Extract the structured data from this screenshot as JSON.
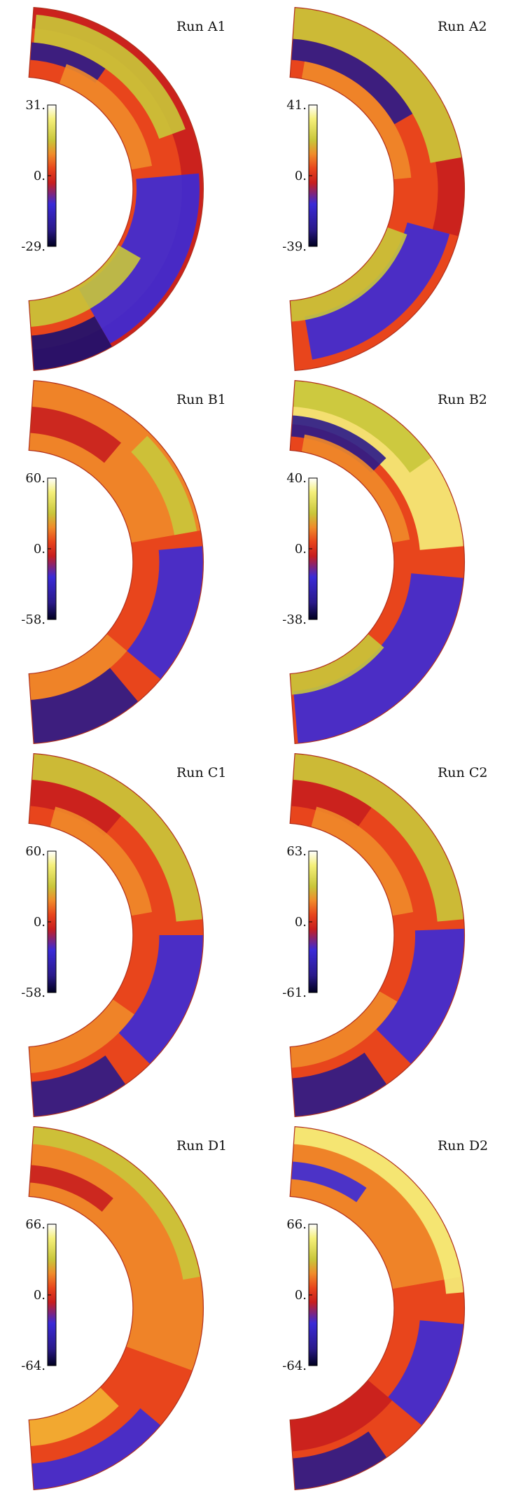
{
  "colormap": {
    "name": "black-blue-red-orange-yellow-white",
    "stops": [
      "#000020",
      "#2a1a8a",
      "#3a2ad8",
      "#c81e1e",
      "#e8451c",
      "#f08a2a",
      "#f3b233",
      "#c9c63a",
      "#f5f07a",
      "#ffffff"
    ]
  },
  "panels": [
    {
      "title": "Run A1",
      "cbar_max": "31.",
      "cbar_zero": "0.",
      "cbar_min": "-29.",
      "bands": [
        {
          "r_from": 0.88,
          "r_to": 1.0,
          "theta_from": -90,
          "theta_to": 90,
          "color": "#c81e1e"
        },
        {
          "r_from": 0.8,
          "r_to": 0.96,
          "theta_from": 20,
          "theta_to": 85,
          "color": "#c9c63a"
        },
        {
          "r_from": 0.7,
          "r_to": 0.8,
          "theta_from": 55,
          "theta_to": 88,
          "color": "#2a1a8a"
        },
        {
          "r_from": 0.6,
          "r_to": 0.72,
          "theta_from": 10,
          "theta_to": 70,
          "color": "#f08a2a"
        },
        {
          "r_from": 0.62,
          "r_to": 0.98,
          "theta_from": -60,
          "theta_to": 5,
          "color": "#3a2ad8"
        },
        {
          "r_from": 0.6,
          "r_to": 0.75,
          "theta_from": -88,
          "theta_to": -30,
          "color": "#c9c63a"
        },
        {
          "r_from": 0.8,
          "r_to": 1.0,
          "theta_from": -88,
          "theta_to": -60,
          "color": "#1a1070"
        }
      ]
    },
    {
      "title": "Run A2",
      "cbar_max": "41.",
      "cbar_zero": "0.",
      "cbar_min": "-39.",
      "bands": [
        {
          "r_from": 0.82,
          "r_to": 1.0,
          "theta_from": 10,
          "theta_to": 88,
          "color": "#c9c63a"
        },
        {
          "r_from": 0.7,
          "r_to": 0.82,
          "theta_from": 30,
          "theta_to": 88,
          "color": "#2a1a8a"
        },
        {
          "r_from": 0.6,
          "r_to": 0.7,
          "theta_from": 5,
          "theta_to": 80,
          "color": "#f08a2a"
        },
        {
          "r_from": 0.85,
          "r_to": 1.0,
          "theta_from": -15,
          "theta_to": 10,
          "color": "#c81e1e"
        },
        {
          "r_from": 0.7,
          "r_to": 0.95,
          "theta_from": -80,
          "theta_to": -15,
          "color": "#3a2ad8"
        },
        {
          "r_from": 0.6,
          "r_to": 0.72,
          "theta_from": -88,
          "theta_to": -20,
          "color": "#c9c63a"
        }
      ]
    },
    {
      "title": "Run B1",
      "cbar_max": "60.",
      "cbar_zero": "0.",
      "cbar_min": "-58.",
      "bands": [
        {
          "r_from": 0.6,
          "r_to": 1.0,
          "theta_from": 10,
          "theta_to": 88,
          "color": "#f08a2a"
        },
        {
          "r_from": 0.7,
          "r_to": 0.85,
          "theta_from": 50,
          "theta_to": 88,
          "color": "#c81e1e"
        },
        {
          "r_from": 0.85,
          "r_to": 0.98,
          "theta_from": 10,
          "theta_to": 45,
          "color": "#c9c63a"
        },
        {
          "r_from": 0.75,
          "r_to": 1.0,
          "theta_from": -40,
          "theta_to": 5,
          "color": "#3a2ad8"
        },
        {
          "r_from": 0.6,
          "r_to": 0.75,
          "theta_from": -88,
          "theta_to": -40,
          "color": "#f08a2a"
        },
        {
          "r_from": 0.75,
          "r_to": 1.0,
          "theta_from": -88,
          "theta_to": -50,
          "color": "#2a1a8a"
        }
      ]
    },
    {
      "title": "Run B2",
      "cbar_max": "40.",
      "cbar_zero": "0.",
      "cbar_min": "-38.",
      "bands": [
        {
          "r_from": 0.75,
          "r_to": 1.0,
          "theta_from": 5,
          "theta_to": 88,
          "color": "#f5f07a"
        },
        {
          "r_from": 0.85,
          "r_to": 1.0,
          "theta_from": 35,
          "theta_to": 88,
          "color": "#c9c63a"
        },
        {
          "r_from": 0.68,
          "r_to": 0.8,
          "theta_from": 45,
          "theta_to": 88,
          "color": "#2a1a8a"
        },
        {
          "r_from": 0.6,
          "r_to": 0.7,
          "theta_from": 10,
          "theta_to": 80,
          "color": "#f08a2a"
        },
        {
          "r_from": 0.7,
          "r_to": 1.0,
          "theta_from": -85,
          "theta_to": -5,
          "color": "#3a2ad8"
        },
        {
          "r_from": 0.6,
          "r_to": 0.72,
          "theta_from": -88,
          "theta_to": -40,
          "color": "#c9c63a"
        }
      ]
    },
    {
      "title": "Run C1",
      "cbar_max": "60.",
      "cbar_zero": "0.",
      "cbar_min": "-58.",
      "bands": [
        {
          "r_from": 0.85,
          "r_to": 1.0,
          "theta_from": 5,
          "theta_to": 88,
          "color": "#c9c63a"
        },
        {
          "r_from": 0.7,
          "r_to": 0.85,
          "theta_from": 50,
          "theta_to": 88,
          "color": "#c81e1e"
        },
        {
          "r_from": 0.6,
          "r_to": 0.72,
          "theta_from": 10,
          "theta_to": 75,
          "color": "#f08a2a"
        },
        {
          "r_from": 0.75,
          "r_to": 1.0,
          "theta_from": -45,
          "theta_to": 0,
          "color": "#3a2ad8"
        },
        {
          "r_from": 0.6,
          "r_to": 0.75,
          "theta_from": -88,
          "theta_to": -35,
          "color": "#f08a2a"
        },
        {
          "r_from": 0.8,
          "r_to": 1.0,
          "theta_from": -88,
          "theta_to": -55,
          "color": "#2a1a8a"
        }
      ]
    },
    {
      "title": "Run C2",
      "cbar_max": "63.",
      "cbar_zero": "0.",
      "cbar_min": "-61.",
      "bands": [
        {
          "r_from": 0.85,
          "r_to": 1.0,
          "theta_from": 5,
          "theta_to": 88,
          "color": "#c9c63a"
        },
        {
          "r_from": 0.7,
          "r_to": 0.85,
          "theta_from": 55,
          "theta_to": 88,
          "color": "#c81e1e"
        },
        {
          "r_from": 0.6,
          "r_to": 0.72,
          "theta_from": 10,
          "theta_to": 75,
          "color": "#f08a2a"
        },
        {
          "r_from": 0.72,
          "r_to": 1.0,
          "theta_from": -45,
          "theta_to": 2,
          "color": "#3a2ad8"
        },
        {
          "r_from": 0.6,
          "r_to": 0.72,
          "theta_from": -88,
          "theta_to": -30,
          "color": "#f08a2a"
        },
        {
          "r_from": 0.78,
          "r_to": 1.0,
          "theta_from": -88,
          "theta_to": -55,
          "color": "#2a1a8a"
        }
      ]
    },
    {
      "title": "Run D1",
      "cbar_max": "66.",
      "cbar_zero": "0.",
      "cbar_min": "-64.",
      "bands": [
        {
          "r_from": 0.6,
          "r_to": 1.0,
          "theta_from": -20,
          "theta_to": 88,
          "color": "#f08a2a"
        },
        {
          "r_from": 0.9,
          "r_to": 1.0,
          "theta_from": 10,
          "theta_to": 88,
          "color": "#c9c63a"
        },
        {
          "r_from": 0.68,
          "r_to": 0.78,
          "theta_from": 50,
          "theta_to": 88,
          "color": "#c81e1e"
        },
        {
          "r_from": 0.85,
          "r_to": 1.0,
          "theta_from": -88,
          "theta_to": -40,
          "color": "#3a2ad8"
        },
        {
          "r_from": 0.6,
          "r_to": 0.75,
          "theta_from": -88,
          "theta_to": -45,
          "color": "#f3b233"
        }
      ]
    },
    {
      "title": "Run D2",
      "cbar_max": "66.",
      "cbar_zero": "0.",
      "cbar_min": "-64.",
      "bands": [
        {
          "r_from": 0.6,
          "r_to": 1.0,
          "theta_from": 10,
          "theta_to": 88,
          "color": "#f08a2a"
        },
        {
          "r_from": 0.9,
          "r_to": 1.0,
          "theta_from": 5,
          "theta_to": 88,
          "color": "#f5f07a"
        },
        {
          "r_from": 0.7,
          "r_to": 0.8,
          "theta_from": 55,
          "theta_to": 88,
          "color": "#3a2ad8"
        },
        {
          "r_from": 0.75,
          "r_to": 1.0,
          "theta_from": -40,
          "theta_to": -5,
          "color": "#3a2ad8"
        },
        {
          "r_from": 0.6,
          "r_to": 0.78,
          "theta_from": -88,
          "theta_to": -40,
          "color": "#c81e1e"
        },
        {
          "r_from": 0.82,
          "r_to": 1.0,
          "theta_from": -88,
          "theta_to": -55,
          "color": "#2a1a8a"
        }
      ]
    }
  ]
}
